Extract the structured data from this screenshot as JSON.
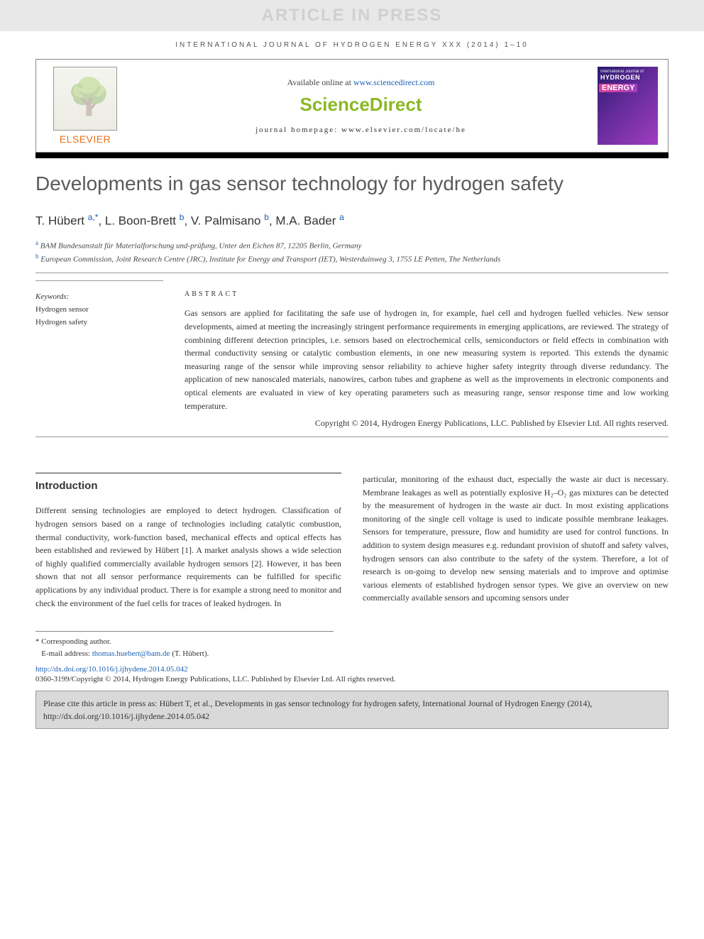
{
  "watermark": "ARTICLE IN PRESS",
  "journal_ref": "INTERNATIONAL JOURNAL OF HYDROGEN ENERGY XXX (2014) 1–10",
  "header": {
    "elsevier": "ELSEVIER",
    "available": "Available online at ",
    "available_link": "www.sciencedirect.com",
    "brand": "ScienceDirect",
    "homepage": "journal homepage: www.elsevier.com/locate/he",
    "cover_line1": "International Journal of",
    "cover_line2": "HYDROGEN",
    "cover_line3": "ENERGY"
  },
  "title": "Developments in gas sensor technology for hydrogen safety",
  "authors": {
    "a1": "T. Hübert",
    "a1_sup": "a,*",
    "a2": "L. Boon-Brett",
    "a2_sup": "b",
    "a3": "V. Palmisano",
    "a3_sup": "b",
    "a4": "M.A. Bader",
    "a4_sup": "a"
  },
  "affiliations": {
    "a": "BAM Bundesanstalt für Materialforschung und-prüfung, Unter den Eichen 87, 12205 Berlin, Germany",
    "b": "European Commission, Joint Research Centre (JRC), Institute for Energy and Transport (IET), Westerduinweg 3, 1755 LE Petten, The Netherlands"
  },
  "keywords": {
    "label": "Keywords:",
    "k1": "Hydrogen sensor",
    "k2": "Hydrogen safety"
  },
  "abstract": {
    "heading": "ABSTRACT",
    "text": "Gas sensors are applied for facilitating the safe use of hydrogen in, for example, fuel cell and hydrogen fuelled vehicles. New sensor developments, aimed at meeting the increasingly stringent performance requirements in emerging applications, are reviewed. The strategy of combining different detection principles, i.e. sensors based on electrochemical cells, semiconductors or field effects in combination with thermal conductivity sensing or catalytic combustion elements, in one new measuring system is reported. This extends the dynamic measuring range of the sensor while improving sensor reliability to achieve higher safety integrity through diverse redundancy. The application of new nanoscaled materials, nanowires, carbon tubes and graphene as well as the improvements in electronic components and optical elements are evaluated in view of key operating parameters such as measuring range, sensor response time and low working temperature.",
    "copyright": "Copyright © 2014, Hydrogen Energy Publications, LLC. Published by Elsevier Ltd. All rights reserved."
  },
  "introduction": {
    "heading": "Introduction",
    "col1": "Different sensing technologies are employed to detect hydrogen. Classification of hydrogen sensors based on a range of technologies including catalytic combustion, thermal conductivity, work-function based, mechanical effects and optical effects has been established and reviewed by Hübert [1]. A market analysis shows a wide selection of highly qualified commercially available hydrogen sensors [2]. However, it has been shown that not all sensor performance requirements can be fulfilled for specific applications by any individual product. There is for example a strong need to monitor and check the environment of the fuel cells for traces of leaked hydrogen. In",
    "col2": "particular, monitoring of the exhaust duct, especially the waste air duct is necessary. Membrane leakages as well as potentially explosive H₂–O₂ gas mixtures can be detected by the measurement of hydrogen in the waste air duct. In most existing applications monitoring of the single cell voltage is used to indicate possible membrane leakages. Sensors for temperature, pressure, flow and humidity are used for control functions. In addition to system design measures e.g. redundant provision of shutoff and safety valves, hydrogen sensors can also contribute to the safety of the system. Therefore, a lot of research is on-going to develop new sensing materials and to improve and optimise various elements of established hydrogen sensor types. We give an overview on new commercially available sensors and upcoming sensors under"
  },
  "footnote": {
    "star": "* Corresponding author.",
    "email_label": "E-mail address: ",
    "email": "thomas.huebert@bam.de",
    "email_author": " (T. Hübert)."
  },
  "doi": "http://dx.doi.org/10.1016/j.ijhydene.2014.05.042",
  "issn": "0360-3199/Copyright © 2014, Hydrogen Energy Publications, LLC. Published by Elsevier Ltd. All rights reserved.",
  "citebox": "Please cite this article in press as: Hübert T, et al., Developments in gas sensor technology for hydrogen safety, International Journal of Hydrogen Energy (2014), http://dx.doi.org/10.1016/j.ijhydene.2014.05.042"
}
